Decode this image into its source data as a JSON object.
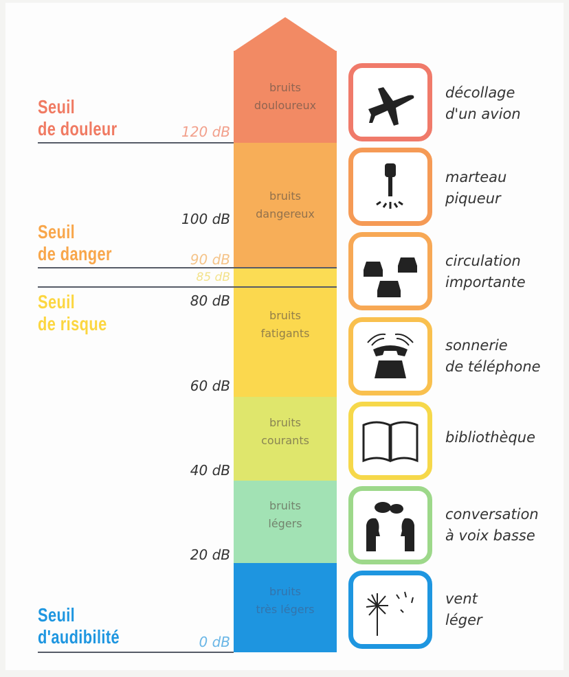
{
  "scale_labels": [
    "120 dB",
    "100 dB",
    "90 dB",
    "85 dB",
    "80 dB",
    "60 dB",
    "40 dB",
    "20 dB",
    "0 dB"
  ],
  "thresholds": [
    {
      "line1": "Seuil",
      "line2": "de douleur",
      "color": "#f07a62"
    },
    {
      "line1": "Seuil",
      "line2": "de danger",
      "color": "#f8a64a"
    },
    {
      "line1": "Seuil",
      "line2": "de risque",
      "color": "#fcd640"
    },
    {
      "line1": "Seuil",
      "line2": "d'audibilité",
      "color": "#1e96e0"
    }
  ],
  "bands": [
    {
      "line1": "bruits",
      "line2": "douloureux",
      "color": "#f28a64"
    },
    {
      "line1": "bruits",
      "line2": "dangereux",
      "color": "#f7ae58"
    },
    {
      "line1": "",
      "line2": "",
      "color": "#fbdc54"
    },
    {
      "line1": "bruits",
      "line2": "fatigants",
      "color": "#fbd84e"
    },
    {
      "line1": "bruits",
      "line2": "courants",
      "color": "#dfe66c"
    },
    {
      "line1": "bruits",
      "line2": "légers",
      "color": "#a2e2b4"
    },
    {
      "line1": "bruits",
      "line2": "très légers",
      "color": "#1e95e0"
    }
  ],
  "examples": [
    {
      "icon": "airplane-icon",
      "line1": "décollage",
      "line2": "d'un avion",
      "color": "#f07a6a"
    },
    {
      "icon": "jackhammer-icon",
      "line1": "marteau",
      "line2": "piqueur",
      "color": "#f59a55"
    },
    {
      "icon": "cars-icon",
      "line1": "circulation",
      "line2": "importante",
      "color": "#f7a855"
    },
    {
      "icon": "telephone-icon",
      "line1": "sonnerie",
      "line2": "de téléphone",
      "color": "#f9c04e"
    },
    {
      "icon": "book-icon",
      "line1": "bibliothèque",
      "line2": "",
      "color": "#f6d84a"
    },
    {
      "icon": "people-talking-icon",
      "line1": "conversation",
      "line2": "à voix basse",
      "color": "#9dd88a"
    },
    {
      "icon": "dandelion-icon",
      "line1": "vent",
      "line2": "léger",
      "color": "#1e96e0"
    }
  ]
}
